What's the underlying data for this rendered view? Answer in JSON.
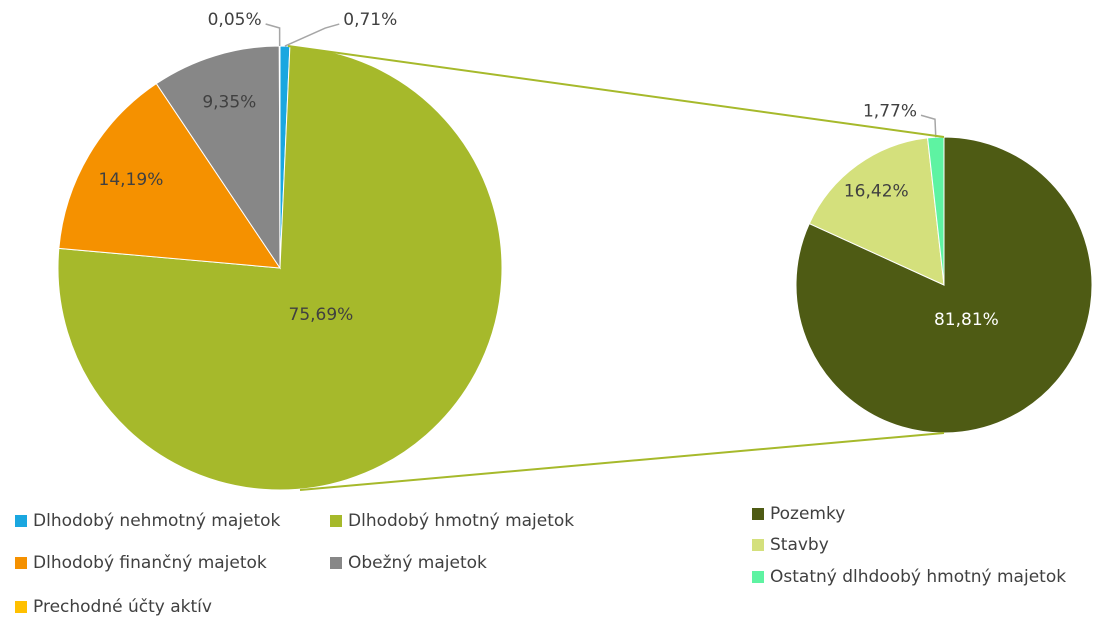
{
  "chart_data": [
    {
      "type": "pie",
      "categories": [
        "Dlhodobý nehmotný majetok",
        "Dlhodobý hmotný majetok",
        "Dlhodobý finančný majetok",
        "Obežný majetok",
        "Prechodné účty aktív"
      ],
      "values": [
        0.71,
        75.69,
        14.19,
        9.35,
        0.05
      ],
      "value_labels": [
        "0,71%",
        "75,69%",
        "14,19%",
        "9,35%",
        "0,05%"
      ],
      "colors": [
        "#1aa7e0",
        "#a6b92b",
        "#f59100",
        "#878787",
        "#ffc000"
      ]
    },
    {
      "type": "pie",
      "categories": [
        "Pozemky",
        "Stavby",
        "Ostatný dlhdoobý hmotný majetok"
      ],
      "values": [
        81.81,
        16.42,
        1.77
      ],
      "value_labels": [
        "81,81%",
        "16,42%",
        "1,77%"
      ],
      "colors": [
        "#4e5b14",
        "#d4e07c",
        "#5ef3a2"
      ]
    }
  ]
}
